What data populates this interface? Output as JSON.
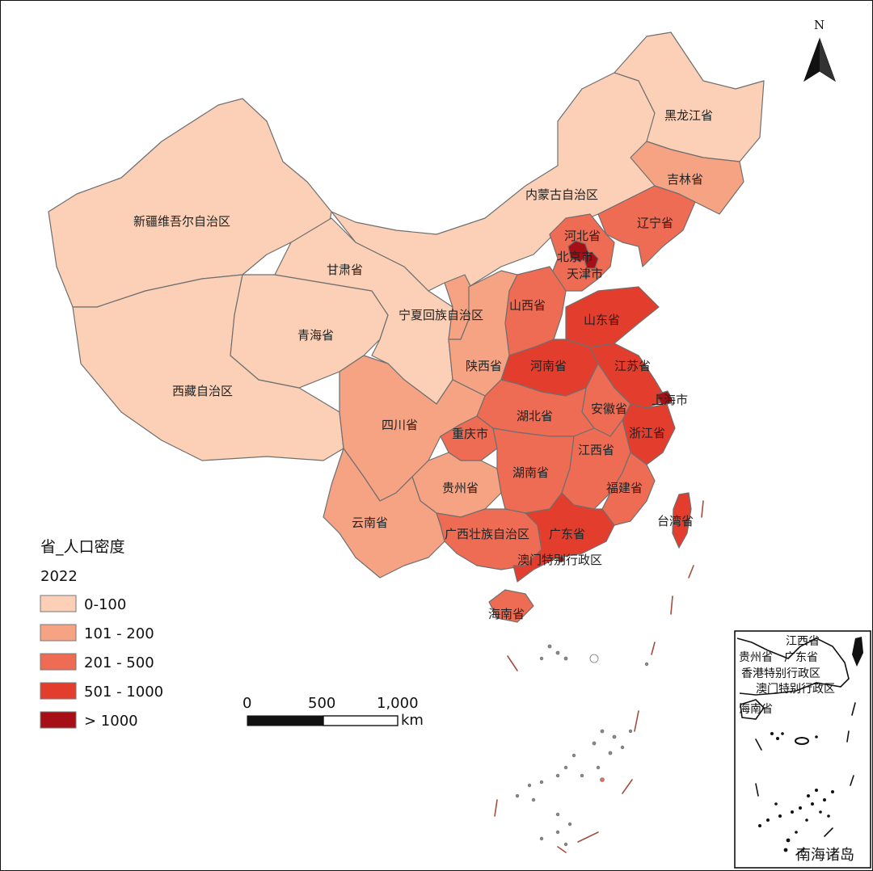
{
  "legend": {
    "title": "省_人口密度",
    "subtitle": "2022",
    "classes": [
      {
        "key": "c1",
        "label": "0-100",
        "color": "#fbd0b6"
      },
      {
        "key": "c2",
        "label": "101 - 200",
        "color": "#f6a384"
      },
      {
        "key": "c3",
        "label": "201 - 500",
        "color": "#ef6c54"
      },
      {
        "key": "c4",
        "label": "501 - 1000",
        "color": "#e33d2e"
      },
      {
        "key": "c5",
        "label": "> 1000",
        "color": "#a50f15"
      }
    ]
  },
  "scale_bar": {
    "labels": [
      "0",
      "500",
      "1,000"
    ],
    "unit": "km"
  },
  "north_arrow": {
    "label": "N",
    "icon": "north-arrow-icon"
  },
  "provinces": [
    {
      "id": "xinjiang",
      "label": "新疆维吾尔自治区",
      "class": "c1"
    },
    {
      "id": "xizang",
      "label": "西藏自治区",
      "class": "c1"
    },
    {
      "id": "qinghai",
      "label": "青海省",
      "class": "c1"
    },
    {
      "id": "gansu",
      "label": "甘肃省",
      "class": "c1"
    },
    {
      "id": "neimenggu",
      "label": "内蒙古自治区",
      "class": "c1"
    },
    {
      "id": "heilongjiang",
      "label": "黑龙江省",
      "class": "c1"
    },
    {
      "id": "jilin",
      "label": "吉林省",
      "class": "c2"
    },
    {
      "id": "liaoning",
      "label": "辽宁省",
      "class": "c3"
    },
    {
      "id": "hebei",
      "label": "河北省",
      "class": "c3"
    },
    {
      "id": "beijing",
      "label": "北京市",
      "class": "c5"
    },
    {
      "id": "tianjin",
      "label": "天津市",
      "class": "c5"
    },
    {
      "id": "shanxi",
      "label": "山西省",
      "class": "c3"
    },
    {
      "id": "shandong",
      "label": "山东省",
      "class": "c4"
    },
    {
      "id": "ningxia",
      "label": "宁夏回族自治区",
      "class": "c2"
    },
    {
      "id": "shaanxi",
      "label": "陕西省",
      "class": "c2"
    },
    {
      "id": "henan",
      "label": "河南省",
      "class": "c4"
    },
    {
      "id": "jiangsu",
      "label": "江苏省",
      "class": "c4"
    },
    {
      "id": "shanghai",
      "label": "上海市",
      "class": "c5"
    },
    {
      "id": "anhui",
      "label": "安徽省",
      "class": "c3"
    },
    {
      "id": "zhejiang",
      "label": "浙江省",
      "class": "c4"
    },
    {
      "id": "hubei",
      "label": "湖北省",
      "class": "c3"
    },
    {
      "id": "sichuan",
      "label": "四川省",
      "class": "c2"
    },
    {
      "id": "chongqing",
      "label": "重庆市",
      "class": "c3"
    },
    {
      "id": "guizhou",
      "label": "贵州省",
      "class": "c2"
    },
    {
      "id": "hunan",
      "label": "湖南省",
      "class": "c3"
    },
    {
      "id": "jiangxi",
      "label": "江西省",
      "class": "c3"
    },
    {
      "id": "fujian",
      "label": "福建省",
      "class": "c3"
    },
    {
      "id": "taiwan",
      "label": "台湾省",
      "class": "c4"
    },
    {
      "id": "yunnan",
      "label": "云南省",
      "class": "c2"
    },
    {
      "id": "guangxi",
      "label": "广西壮族自治区",
      "class": "c3"
    },
    {
      "id": "guangdong",
      "label": "广东省",
      "class": "c4"
    },
    {
      "id": "macau",
      "label": "澳门特别行政区",
      "class": "c5"
    },
    {
      "id": "hainan",
      "label": "海南省",
      "class": "c3"
    }
  ],
  "inset": {
    "title": "南海诸岛",
    "labels": [
      "江西省",
      "贵州省",
      "广东省",
      "香港特别行政区",
      "澳门特别行政区",
      "海南省"
    ]
  }
}
